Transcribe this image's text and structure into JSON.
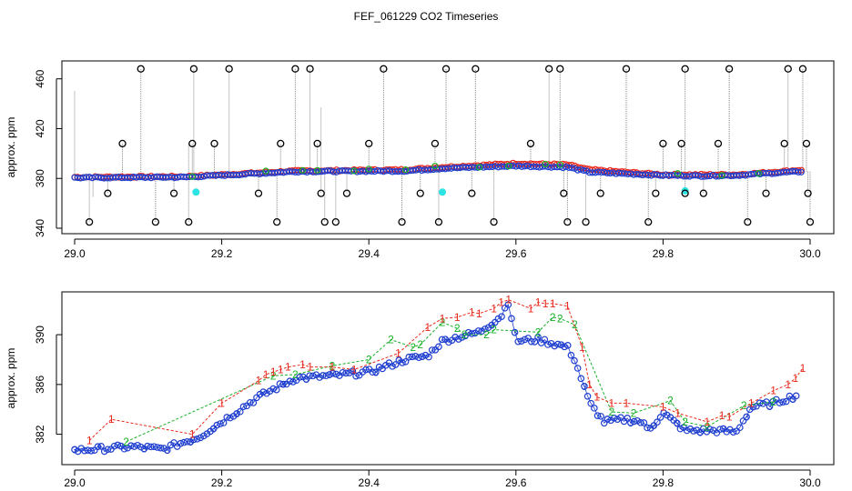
{
  "figure": {
    "title": "FEF_061229  CO2 Timeseries"
  },
  "chart_data": [
    {
      "type": "scatter",
      "name": "top",
      "ylabel": "approx. ppm",
      "xlim": [
        29.0,
        30.0
      ],
      "ylim": [
        340,
        470
      ],
      "xticks": [
        29.0,
        29.2,
        29.4,
        29.6,
        29.8,
        30.0
      ],
      "xtick_labels": [
        "29.0",
        "29.2",
        "29.4",
        "29.6",
        "29.8",
        "30.0"
      ],
      "yticks": [
        340,
        380,
        420,
        460
      ],
      "ytick_labels": [
        "340",
        "380",
        "420",
        "460"
      ],
      "series": [
        {
          "name": "red",
          "color": "#e8291c",
          "symbol": "circle",
          "baseline": [
            [
              29.0,
              381
            ],
            [
              29.15,
              381.5
            ],
            [
              29.2,
              383
            ],
            [
              29.3,
              386
            ],
            [
              29.45,
              387
            ],
            [
              29.5,
              389
            ],
            [
              29.6,
              392
            ],
            [
              29.67,
              391
            ],
            [
              29.7,
              387
            ],
            [
              29.8,
              383
            ],
            [
              29.85,
              383
            ],
            [
              29.9,
              383
            ],
            [
              29.97,
              386
            ],
            [
              29.99,
              387
            ]
          ]
        },
        {
          "name": "blue",
          "color": "#1e3ecf",
          "symbol": "circle",
          "baseline": [
            [
              29.0,
              380.5
            ],
            [
              29.15,
              381
            ],
            [
              29.2,
              382.5
            ],
            [
              29.3,
              385.5
            ],
            [
              29.45,
              386
            ],
            [
              29.5,
              388
            ],
            [
              29.6,
              390
            ],
            [
              29.67,
              389
            ],
            [
              29.7,
              385
            ],
            [
              29.8,
              382.5
            ],
            [
              29.85,
              382
            ],
            [
              29.9,
              382.5
            ],
            [
              29.97,
              385
            ],
            [
              29.99,
              385.5
            ]
          ]
        },
        {
          "name": "green",
          "color": "#18b22a",
          "symbol": "circle",
          "points": [
            [
              29.16,
              381.5
            ],
            [
              29.26,
              386
            ],
            [
              29.31,
              386.5
            ],
            [
              29.33,
              386.5
            ],
            [
              29.38,
              386
            ],
            [
              29.4,
              387.5
            ],
            [
              29.45,
              387
            ],
            [
              29.49,
              390
            ],
            [
              29.55,
              389
            ],
            [
              29.59,
              390
            ],
            [
              29.64,
              391.5
            ],
            [
              29.66,
              391
            ],
            [
              29.82,
              384
            ],
            [
              29.88,
              382.5
            ],
            [
              29.93,
              384
            ]
          ]
        },
        {
          "name": "cyan",
          "color": "#2de3e3",
          "symbol": "circle",
          "points": [
            [
              29.165,
              369
            ],
            [
              29.5,
              369
            ],
            [
              29.83,
              370
            ]
          ]
        },
        {
          "name": "spikes",
          "color": "#000000",
          "symbol": "circle-open",
          "points": [
            [
              29.02,
              345
            ],
            [
              29.045,
              368
            ],
            [
              29.065,
              408
            ],
            [
              29.09,
              468
            ],
            [
              29.11,
              345
            ],
            [
              29.135,
              368
            ],
            [
              29.155,
              345
            ],
            [
              29.16,
              408
            ],
            [
              29.162,
              468
            ],
            [
              29.19,
              408
            ],
            [
              29.21,
              468
            ],
            [
              29.25,
              368
            ],
            [
              29.275,
              345
            ],
            [
              29.28,
              408
            ],
            [
              29.3,
              468
            ],
            [
              29.32,
              468
            ],
            [
              29.33,
              408
            ],
            [
              29.335,
              368
            ],
            [
              29.34,
              345
            ],
            [
              29.355,
              345
            ],
            [
              29.37,
              368
            ],
            [
              29.4,
              408
            ],
            [
              29.42,
              468
            ],
            [
              29.445,
              345
            ],
            [
              29.47,
              368
            ],
            [
              29.49,
              408
            ],
            [
              29.495,
              345
            ],
            [
              29.505,
              468
            ],
            [
              29.54,
              368
            ],
            [
              29.545,
              468
            ],
            [
              29.57,
              345
            ],
            [
              29.62,
              408
            ],
            [
              29.645,
              468
            ],
            [
              29.66,
              468
            ],
            [
              29.665,
              368
            ],
            [
              29.67,
              345
            ],
            [
              29.695,
              345
            ],
            [
              29.715,
              368
            ],
            [
              29.75,
              468
            ],
            [
              29.78,
              345
            ],
            [
              29.79,
              368
            ],
            [
              29.8,
              408
            ],
            [
              29.825,
              408
            ],
            [
              29.83,
              468
            ],
            [
              29.83,
              368
            ],
            [
              29.855,
              368
            ],
            [
              29.875,
              408
            ],
            [
              29.89,
              468
            ],
            [
              29.915,
              345
            ],
            [
              29.94,
              368
            ],
            [
              29.965,
              408
            ],
            [
              29.97,
              468
            ],
            [
              29.99,
              468
            ],
            [
              29.995,
              408
            ],
            [
              29.997,
              368
            ],
            [
              30.0,
              345
            ]
          ]
        },
        {
          "name": "extra-dotted-lines",
          "color": "#777777",
          "points": [
            [
              29.0,
              450
            ],
            [
              29.025,
              365
            ],
            [
              29.08,
              383
            ],
            [
              29.155,
              408
            ],
            [
              29.335,
              437
            ],
            [
              29.66,
              420
            ]
          ]
        }
      ]
    },
    {
      "type": "scatter",
      "name": "bottom",
      "ylabel": "approx. ppm",
      "xlim": [
        29.0,
        30.0
      ],
      "ylim": [
        380,
        393
      ],
      "xticks": [
        29.0,
        29.2,
        29.4,
        29.6,
        29.8,
        30.0
      ],
      "xtick_labels": [
        "29.0",
        "29.2",
        "29.4",
        "29.6",
        "29.8",
        "30.0"
      ],
      "yticks": [
        382,
        386,
        390
      ],
      "ytick_labels": [
        "382",
        "386",
        "390"
      ],
      "series": [
        {
          "name": "1",
          "color": "#e8291c",
          "marker": "1",
          "points": [
            [
              29.02,
              381.5
            ],
            [
              29.05,
              383.2
            ],
            [
              29.16,
              382
            ],
            [
              29.2,
              384.5
            ],
            [
              29.25,
              386.3
            ],
            [
              29.26,
              386.8
            ],
            [
              29.27,
              387
            ],
            [
              29.28,
              387.2
            ],
            [
              29.29,
              387.4
            ],
            [
              29.31,
              387.6
            ],
            [
              29.32,
              387.4
            ],
            [
              29.35,
              387.4
            ],
            [
              29.38,
              387.2
            ],
            [
              29.44,
              388.5
            ],
            [
              29.48,
              390.6
            ],
            [
              29.5,
              391.3
            ],
            [
              29.52,
              391.4
            ],
            [
              29.54,
              391.8
            ],
            [
              29.55,
              391.7
            ],
            [
              29.57,
              392.1
            ],
            [
              29.58,
              392.6
            ],
            [
              29.59,
              392.8
            ],
            [
              29.62,
              392.1
            ],
            [
              29.63,
              392.6
            ],
            [
              29.64,
              392.5
            ],
            [
              29.65,
              392.5
            ],
            [
              29.67,
              392.3
            ],
            [
              29.69,
              389
            ],
            [
              29.7,
              386
            ],
            [
              29.71,
              385
            ],
            [
              29.73,
              384.5
            ],
            [
              29.75,
              384.5
            ],
            [
              29.8,
              384.2
            ],
            [
              29.82,
              383.7
            ],
            [
              29.86,
              383
            ],
            [
              29.88,
              383.5
            ],
            [
              29.89,
              383.4
            ],
            [
              29.92,
              384.5
            ],
            [
              29.95,
              385.5
            ],
            [
              29.97,
              386
            ],
            [
              29.98,
              386.5
            ],
            [
              29.99,
              387.3
            ]
          ]
        },
        {
          "name": "2",
          "color": "#18b22a",
          "marker": "2",
          "points": [
            [
              29.07,
              381.4
            ],
            [
              29.27,
              386.7
            ],
            [
              29.3,
              386.8
            ],
            [
              29.35,
              387.5
            ],
            [
              29.4,
              388
            ],
            [
              29.43,
              389.6
            ],
            [
              29.46,
              389
            ],
            [
              29.47,
              389.2
            ],
            [
              29.5,
              391
            ],
            [
              29.52,
              390.5
            ],
            [
              29.53,
              390
            ],
            [
              29.56,
              390
            ],
            [
              29.57,
              390.4
            ],
            [
              29.63,
              390.2
            ],
            [
              29.65,
              391.4
            ],
            [
              29.66,
              391.3
            ],
            [
              29.68,
              390.8
            ],
            [
              29.73,
              383.8
            ],
            [
              29.76,
              383.7
            ],
            [
              29.81,
              384.7
            ],
            [
              29.83,
              383
            ],
            [
              29.86,
              382.6
            ],
            [
              29.91,
              384.3
            ],
            [
              29.95,
              384.6
            ]
          ]
        },
        {
          "name": "3",
          "color": "#1e3ecf",
          "marker": "3",
          "baseline": [
            [
              29.0,
              380.7
            ],
            [
              29.08,
              381
            ],
            [
              29.12,
              380.8
            ],
            [
              29.17,
              381.8
            ],
            [
              29.2,
              383
            ],
            [
              29.25,
              385
            ],
            [
              29.3,
              386.5
            ],
            [
              29.35,
              386.7
            ],
            [
              29.4,
              387
            ],
            [
              29.45,
              388
            ],
            [
              29.48,
              388.3
            ],
            [
              29.5,
              389.5
            ],
            [
              29.55,
              390.2
            ],
            [
              29.58,
              391.5
            ],
            [
              29.59,
              392.7
            ],
            [
              29.6,
              389.5
            ],
            [
              29.63,
              389.6
            ],
            [
              29.67,
              389
            ],
            [
              29.68,
              388
            ],
            [
              29.7,
              384.5
            ],
            [
              29.72,
              383
            ],
            [
              29.75,
              383.2
            ],
            [
              29.77,
              383
            ],
            [
              29.78,
              382.4
            ],
            [
              29.79,
              383
            ],
            [
              29.8,
              383.7
            ],
            [
              29.83,
              382.3
            ],
            [
              29.87,
              382.3
            ],
            [
              29.9,
              382.2
            ],
            [
              29.92,
              384.2
            ],
            [
              29.95,
              384.5
            ],
            [
              29.98,
              385.1
            ]
          ]
        }
      ]
    }
  ]
}
